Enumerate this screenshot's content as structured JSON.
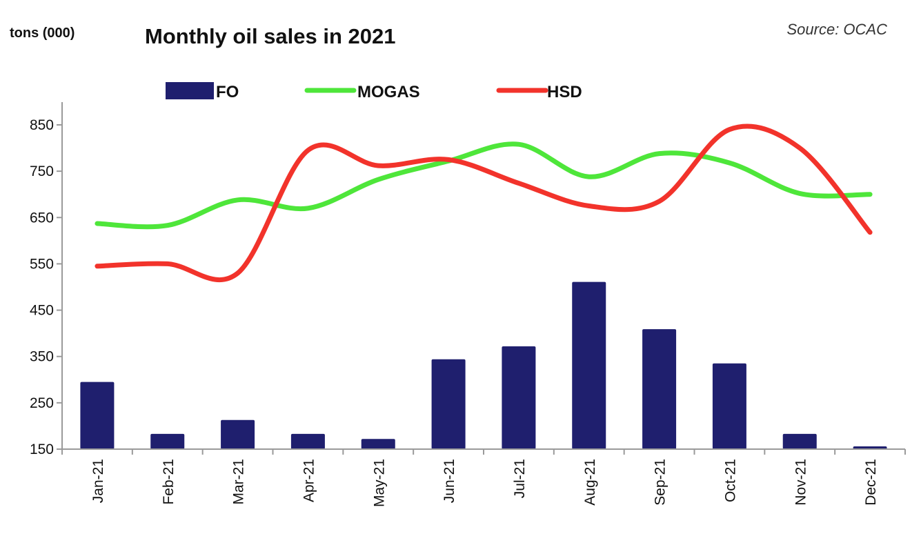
{
  "chart_data": {
    "type": "bar+line",
    "title": "Monthly oil sales in 2021",
    "unit_label": "tons (000)",
    "source": "Source: OCAC",
    "categories": [
      "Jan-21",
      "Feb-21",
      "Mar-21",
      "Apr-21",
      "May-21",
      "Jun-21",
      "Jul-21",
      "Aug-21",
      "Sep-21",
      "Oct-21",
      "Nov-21",
      "Dec-21"
    ],
    "ylim": [
      150,
      890
    ],
    "yticks": [
      150,
      250,
      350,
      450,
      550,
      650,
      750,
      850
    ],
    "grid": false,
    "legend_position": "top",
    "series": [
      {
        "name": "FO",
        "type": "bar",
        "color": "#1f1f6e",
        "values": [
          295,
          183,
          213,
          183,
          172,
          344,
          372,
          511,
          409,
          335,
          183,
          156
        ]
      },
      {
        "name": "MOGAS",
        "type": "line",
        "color": "#4ee63a",
        "values": [
          637,
          633,
          688,
          670,
          732,
          772,
          808,
          738,
          788,
          768,
          702,
          700
        ]
      },
      {
        "name": "HSD",
        "type": "line",
        "color": "#f2332b",
        "values": [
          545,
          550,
          530,
          795,
          762,
          775,
          724,
          675,
          685,
          840,
          800,
          618
        ]
      }
    ]
  }
}
